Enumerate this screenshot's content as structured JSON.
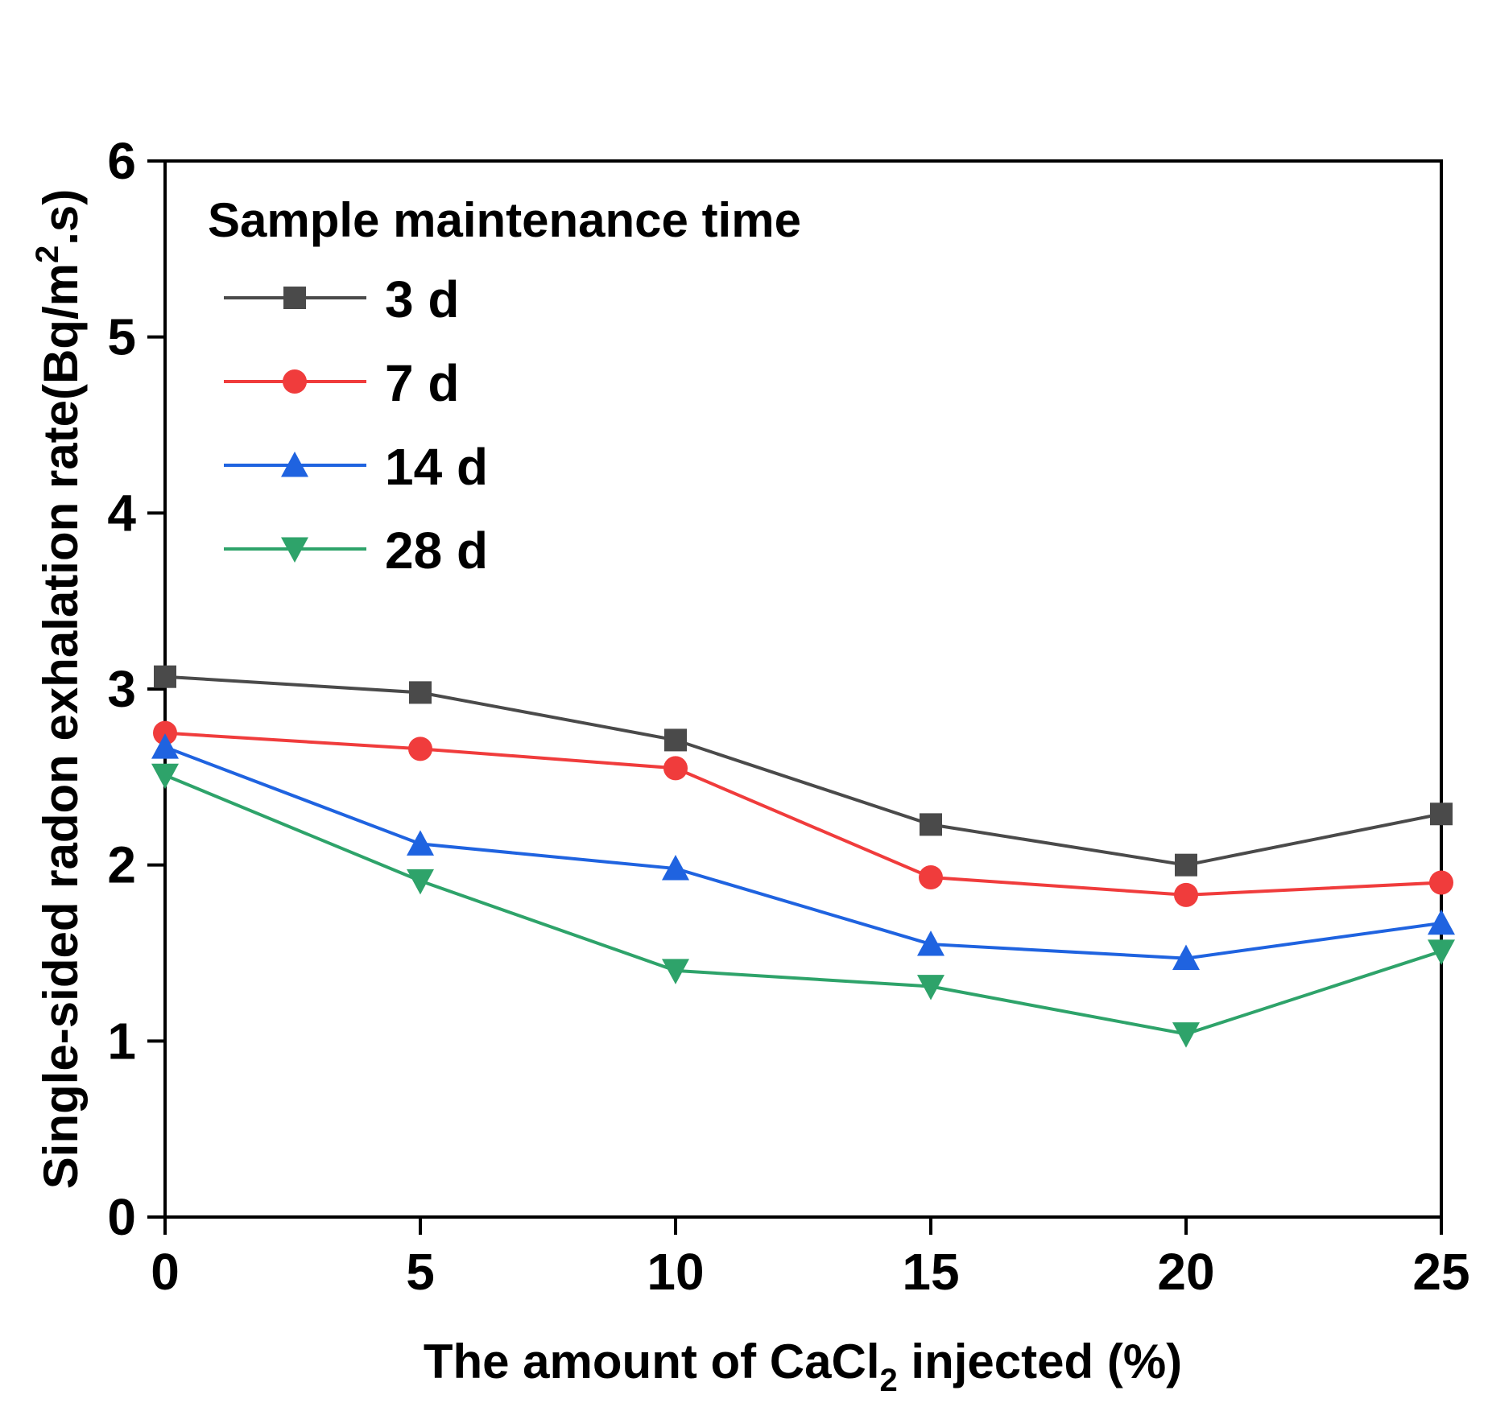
{
  "chart_data": {
    "type": "line",
    "title": "",
    "xlabel": {
      "prefix": "The amount of CaCl",
      "sub": "2",
      "suffix": " injected (%)"
    },
    "ylabel": {
      "prefix": "Single-sided radon exhalation rate(Bq/m",
      "sup": "2",
      "suffix": ".s)"
    },
    "x": [
      0,
      5,
      10,
      15,
      20,
      25
    ],
    "x_ticks": [
      "0",
      "5",
      "10",
      "15",
      "20",
      "25"
    ],
    "y_ticks": [
      "0",
      "1",
      "2",
      "3",
      "4",
      "5",
      "6"
    ],
    "xlim": [
      0,
      25
    ],
    "ylim": [
      0,
      6
    ],
    "grid": false,
    "legend": {
      "title": "Sample maintenance time",
      "position": "top-left"
    },
    "series": [
      {
        "name": "3 d",
        "color": "#4a4a4a",
        "marker": "square",
        "values": [
          3.07,
          2.98,
          2.71,
          2.23,
          2.0,
          2.29
        ]
      },
      {
        "name": "7 d",
        "color": "#f03c3c",
        "marker": "circle",
        "values": [
          2.75,
          2.66,
          2.55,
          1.93,
          1.83,
          1.9
        ]
      },
      {
        "name": "14 d",
        "color": "#1f63e0",
        "marker": "triangle-up",
        "values": [
          2.67,
          2.12,
          1.98,
          1.55,
          1.47,
          1.67
        ]
      },
      {
        "name": "28 d",
        "color": "#2ea36a",
        "marker": "triangle-down",
        "values": [
          2.51,
          1.91,
          1.4,
          1.31,
          1.04,
          1.51
        ]
      }
    ]
  }
}
